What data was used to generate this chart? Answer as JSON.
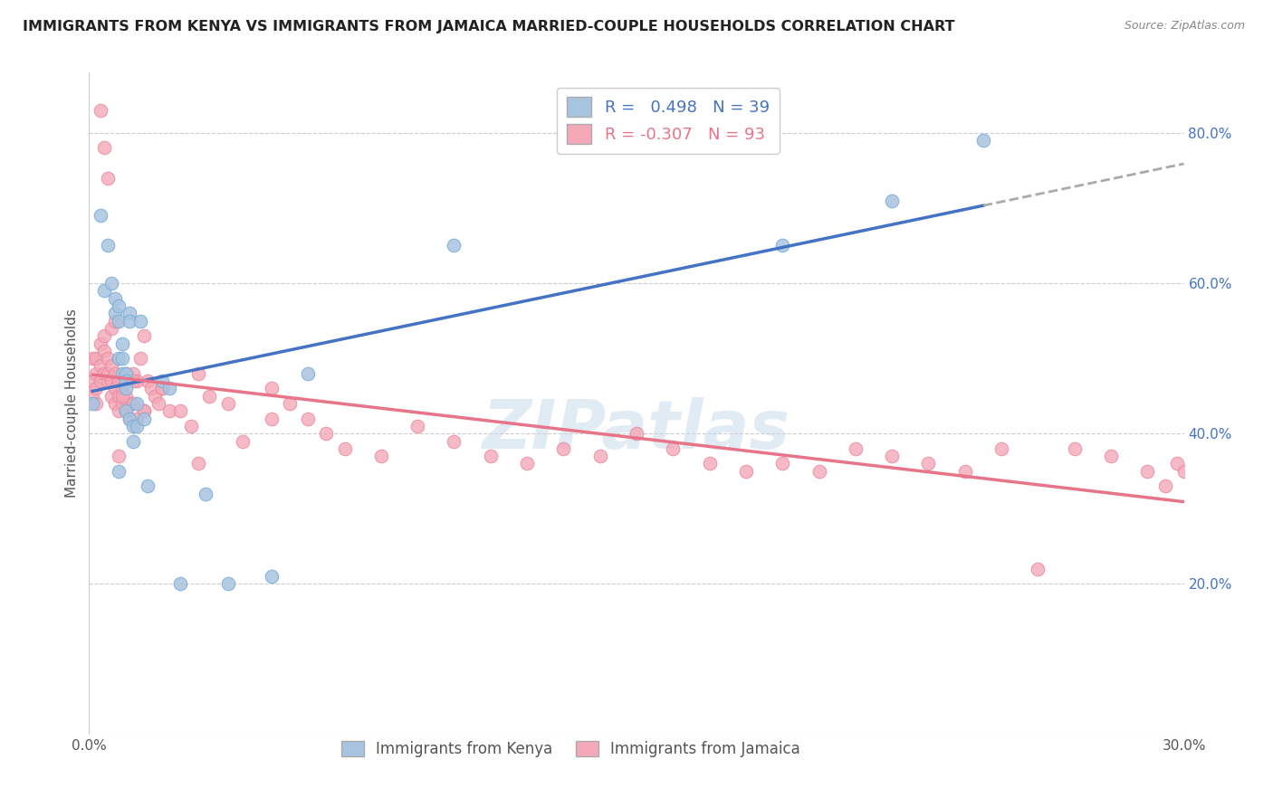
{
  "title": "IMMIGRANTS FROM KENYA VS IMMIGRANTS FROM JAMAICA MARRIED-COUPLE HOUSEHOLDS CORRELATION CHART",
  "source": "Source: ZipAtlas.com",
  "ylabel": "Married-couple Households",
  "xlim": [
    0.0,
    0.3
  ],
  "ylim": [
    0.0,
    0.88
  ],
  "x_ticks": [
    0.0,
    0.05,
    0.1,
    0.15,
    0.2,
    0.25,
    0.3
  ],
  "y_ticks": [
    0.0,
    0.2,
    0.4,
    0.6,
    0.8
  ],
  "y_tick_labels": [
    "",
    "20.0%",
    "40.0%",
    "60.0%",
    "80.0%"
  ],
  "kenya_color": "#a8c4e0",
  "jamaica_color": "#f4a8b8",
  "kenya_edge_color": "#7aadd4",
  "jamaica_edge_color": "#e88aa0",
  "kenya_line_color": "#4472c4",
  "jamaica_line_color": "#e8748a",
  "dashed_line_color": "#aaaaaa",
  "kenya_R": 0.498,
  "kenya_N": 39,
  "jamaica_R": -0.307,
  "jamaica_N": 93,
  "watermark": "ZIPatlas",
  "kenya_x": [
    0.001,
    0.003,
    0.004,
    0.006,
    0.007,
    0.007,
    0.008,
    0.008,
    0.008,
    0.009,
    0.009,
    0.009,
    0.01,
    0.01,
    0.01,
    0.01,
    0.011,
    0.011,
    0.011,
    0.012,
    0.012,
    0.013,
    0.013,
    0.014,
    0.015,
    0.016,
    0.02,
    0.022,
    0.025,
    0.032,
    0.038,
    0.05,
    0.06,
    0.1,
    0.19,
    0.22,
    0.245,
    0.005,
    0.008
  ],
  "kenya_y": [
    0.44,
    0.69,
    0.59,
    0.6,
    0.58,
    0.56,
    0.57,
    0.55,
    0.5,
    0.52,
    0.5,
    0.48,
    0.48,
    0.47,
    0.46,
    0.43,
    0.56,
    0.55,
    0.42,
    0.41,
    0.39,
    0.44,
    0.41,
    0.55,
    0.42,
    0.33,
    0.47,
    0.46,
    0.2,
    0.32,
    0.2,
    0.21,
    0.48,
    0.65,
    0.65,
    0.71,
    0.79,
    0.65,
    0.35
  ],
  "jamaica_x": [
    0.001,
    0.001,
    0.001,
    0.002,
    0.002,
    0.002,
    0.002,
    0.003,
    0.003,
    0.003,
    0.004,
    0.004,
    0.004,
    0.005,
    0.005,
    0.005,
    0.006,
    0.006,
    0.006,
    0.007,
    0.007,
    0.007,
    0.008,
    0.008,
    0.008,
    0.009,
    0.009,
    0.01,
    0.01,
    0.011,
    0.011,
    0.012,
    0.012,
    0.013,
    0.013,
    0.014,
    0.015,
    0.015,
    0.016,
    0.017,
    0.018,
    0.019,
    0.02,
    0.022,
    0.025,
    0.028,
    0.03,
    0.033,
    0.038,
    0.042,
    0.05,
    0.055,
    0.06,
    0.065,
    0.07,
    0.08,
    0.09,
    0.1,
    0.11,
    0.12,
    0.13,
    0.14,
    0.15,
    0.16,
    0.17,
    0.18,
    0.19,
    0.2,
    0.21,
    0.22,
    0.23,
    0.24,
    0.25,
    0.26,
    0.27,
    0.28,
    0.29,
    0.295,
    0.298,
    0.3,
    0.003,
    0.004,
    0.005,
    0.006,
    0.007,
    0.008,
    0.009,
    0.01,
    0.012,
    0.015,
    0.02,
    0.03,
    0.05
  ],
  "jamaica_y": [
    0.45,
    0.5,
    0.47,
    0.5,
    0.48,
    0.46,
    0.44,
    0.52,
    0.49,
    0.47,
    0.53,
    0.51,
    0.48,
    0.47,
    0.5,
    0.48,
    0.49,
    0.47,
    0.45,
    0.48,
    0.46,
    0.44,
    0.47,
    0.45,
    0.43,
    0.46,
    0.44,
    0.45,
    0.43,
    0.44,
    0.42,
    0.48,
    0.44,
    0.47,
    0.42,
    0.5,
    0.53,
    0.43,
    0.47,
    0.46,
    0.45,
    0.44,
    0.46,
    0.43,
    0.43,
    0.41,
    0.48,
    0.45,
    0.44,
    0.39,
    0.46,
    0.44,
    0.42,
    0.4,
    0.38,
    0.37,
    0.41,
    0.39,
    0.37,
    0.36,
    0.38,
    0.37,
    0.4,
    0.38,
    0.36,
    0.35,
    0.36,
    0.35,
    0.38,
    0.37,
    0.36,
    0.35,
    0.38,
    0.22,
    0.38,
    0.37,
    0.35,
    0.33,
    0.36,
    0.35,
    0.83,
    0.78,
    0.74,
    0.54,
    0.55,
    0.37,
    0.45,
    0.48,
    0.47,
    0.43,
    0.46,
    0.36,
    0.42
  ]
}
